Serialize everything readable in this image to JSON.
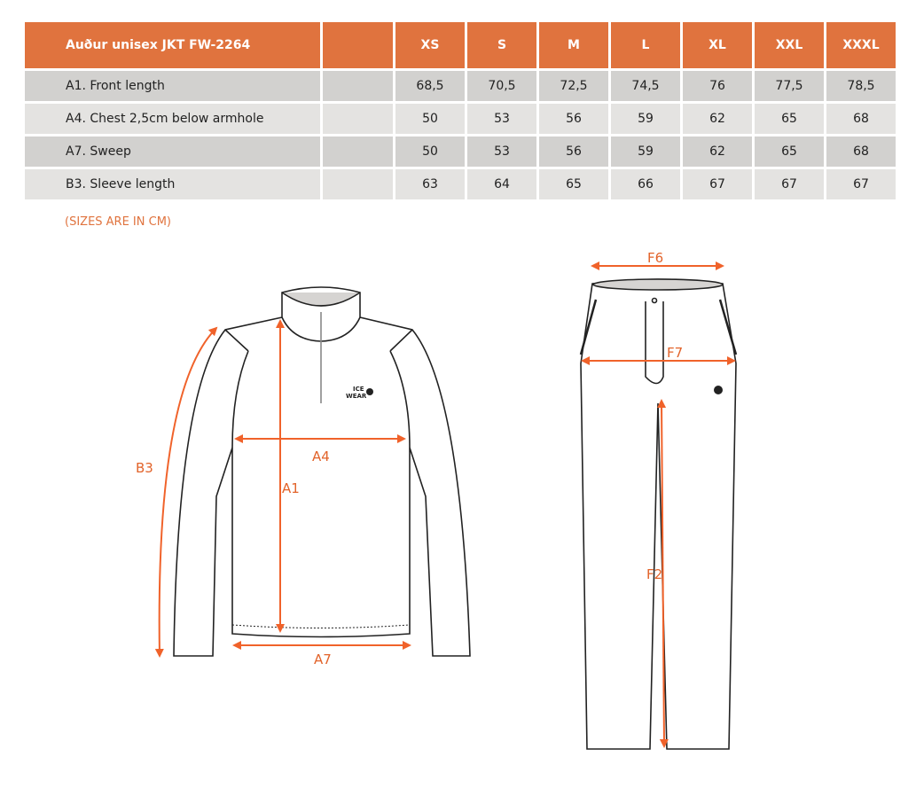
{
  "table": {
    "title": "Auður unisex JKT FW-2264",
    "sizes": [
      "XS",
      "S",
      "M",
      "L",
      "XL",
      "XXL",
      "XXXL"
    ],
    "rows": [
      {
        "label": "A1. Front length",
        "values": [
          "68,5",
          "70,5",
          "72,5",
          "74,5",
          "76",
          "77,5",
          "78,5"
        ]
      },
      {
        "label": "A4. Chest 2,5cm below armhole",
        "values": [
          "50",
          "53",
          "56",
          "59",
          "62",
          "65",
          "68"
        ]
      },
      {
        "label": "A7. Sweep",
        "values": [
          "50",
          "53",
          "56",
          "59",
          "62",
          "65",
          "68"
        ]
      },
      {
        "label": "B3. Sleeve length",
        "values": [
          "63",
          "64",
          "65",
          "66",
          "67",
          "67",
          "67"
        ]
      }
    ]
  },
  "note": "(SIZES ARE IN CM)",
  "jacket": {
    "labels": {
      "a1": "A1",
      "a4": "A4",
      "a7": "A7",
      "b3": "B3"
    },
    "logo": [
      "ICE",
      "WEAR"
    ]
  },
  "pants": {
    "labels": {
      "f6": "F6",
      "f7": "F7",
      "f2": "F2"
    }
  },
  "colors": {
    "accent": "#e0733e",
    "arrow": "#f0622a"
  }
}
